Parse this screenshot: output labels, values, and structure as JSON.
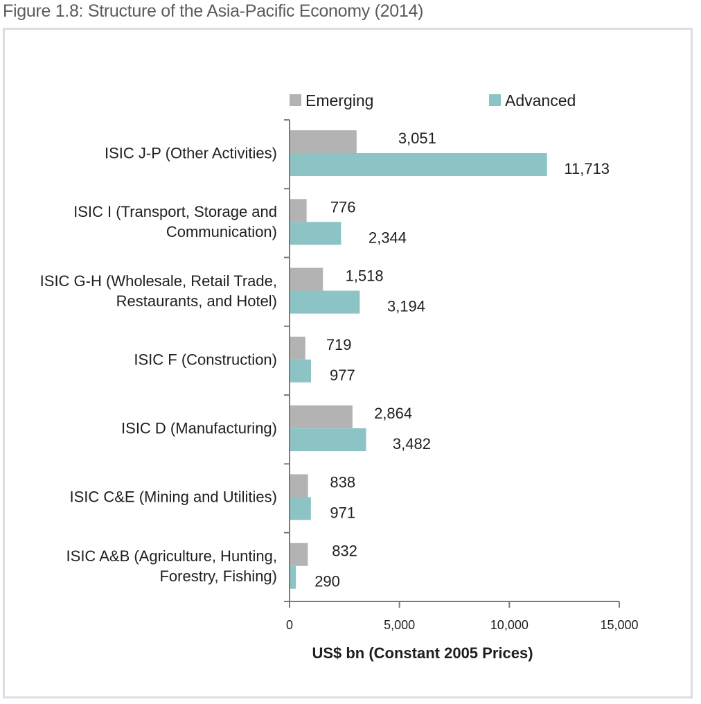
{
  "figure": {
    "title": "Figure 1.8: Structure of the Asia-Pacific Economy (2014)"
  },
  "chart_data": {
    "type": "bar",
    "orientation": "horizontal",
    "title": "",
    "xlabel": "US$ bn (Constant 2005 Prices)",
    "ylabel": "",
    "xlim": [
      0,
      15000
    ],
    "xticks": [
      0,
      5000,
      10000,
      15000
    ],
    "xtick_labels": [
      "0",
      "5,000",
      "10,000",
      "15,000"
    ],
    "grid": false,
    "legend_position": "top",
    "categories": [
      "ISIC J-P (Other Activities)",
      "ISIC I (Transport, Storage and Communication)",
      "ISIC G-H (Wholesale, Retail Trade, Restaurants, and Hotel)",
      "ISIC F (Construction)",
      "ISIC D (Manufacturing)",
      "ISIC C&E (Mining and Utilities)",
      "ISIC A&B (Agriculture, Hunting, Forestry, Fishing)"
    ],
    "category_label_lines": [
      [
        "ISIC J-P (Other Activities)"
      ],
      [
        "ISIC I (Transport, Storage and",
        "Communication)"
      ],
      [
        "ISIC G-H (Wholesale, Retail Trade,",
        "Restaurants, and Hotel)"
      ],
      [
        "ISIC F (Construction)"
      ],
      [
        "ISIC D (Manufacturing)"
      ],
      [
        "ISIC C&E (Mining and Utilities)"
      ],
      [
        "ISIC A&B (Agriculture, Hunting,",
        "Forestry, Fishing)"
      ]
    ],
    "series": [
      {
        "name": "Emerging",
        "color": "#b3b3b3",
        "values": [
          3051,
          776,
          1518,
          719,
          2864,
          838,
          832
        ],
        "value_labels": [
          "3,051",
          "776",
          "1,518",
          "719",
          "2,864",
          "838",
          "832"
        ]
      },
      {
        "name": "Advanced",
        "color": "#8cc3c5",
        "values": [
          11713,
          2344,
          3194,
          977,
          3482,
          971,
          290
        ],
        "value_labels": [
          "11,713",
          "2,344",
          "3,194",
          "977",
          "3,482",
          "971",
          "290"
        ]
      }
    ]
  }
}
